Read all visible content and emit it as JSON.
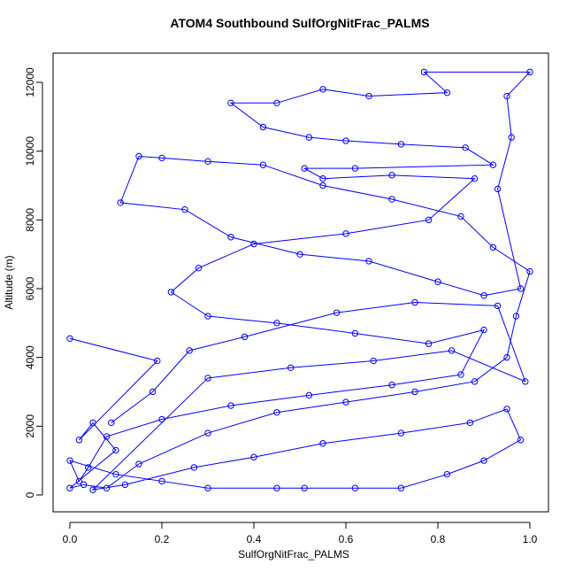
{
  "chart_data": {
    "type": "line",
    "marker": "circle",
    "title": "ATOM4 Southbound SulfOrgNitFrac_PALMS",
    "x_label": "SulfOrgNitFrac_PALMS",
    "y_label": "Altitude (m)",
    "xlim": [
      -0.0365,
      1.0404
    ],
    "ylim": [
      -490,
      12850
    ],
    "xticks": [
      {
        "value": 0,
        "label": "0.0"
      },
      {
        "value": 0.2,
        "label": "0.2"
      },
      {
        "value": 0.4,
        "label": "0.4"
      },
      {
        "value": 0.6,
        "label": "0.6"
      },
      {
        "value": 0.8,
        "label": "0.8"
      },
      {
        "value": 1,
        "label": "1.0"
      }
    ],
    "yticks": [
      0,
      2000,
      4000,
      6000,
      8000,
      10000,
      12000
    ],
    "grid": false,
    "series": [
      {
        "color": "#0000ff",
        "x": [
          0.0,
          0.19,
          0.02,
          0.05,
          0.1,
          0.0,
          0.03,
          0.08,
          0.15,
          0.3,
          0.45,
          0.6,
          0.75,
          0.88,
          0.95,
          0.97,
          1.0,
          0.92,
          0.85,
          0.7,
          0.55,
          0.42,
          0.3,
          0.2,
          0.15,
          0.11,
          0.25,
          0.35,
          0.5,
          0.65,
          0.8,
          0.9,
          0.98,
          0.93,
          0.96,
          0.95,
          1.0,
          0.77,
          0.82,
          0.65,
          0.55,
          0.45,
          0.35,
          0.42,
          0.52,
          0.6,
          0.72,
          0.86,
          0.92,
          0.62,
          0.51,
          0.55,
          0.7,
          0.88,
          0.78,
          0.6,
          0.4,
          0.28,
          0.22,
          0.3,
          0.45,
          0.62,
          0.78,
          0.9,
          0.85,
          0.7,
          0.52,
          0.35,
          0.2,
          0.08,
          0.04,
          0.02,
          0.0,
          0.1,
          0.2,
          0.3,
          0.45,
          0.51,
          0.62,
          0.72,
          0.82,
          0.9,
          0.98,
          0.95,
          0.87,
          0.72,
          0.55,
          0.4,
          0.27,
          0.12,
          0.05,
          0.3,
          0.48,
          0.66,
          0.83,
          0.99,
          0.93,
          0.75,
          0.58,
          0.38,
          0.26,
          0.18,
          0.09
        ],
        "values": [
          4550,
          3900,
          1600,
          2100,
          1300,
          200,
          300,
          200,
          900,
          1800,
          2400,
          2700,
          3000,
          3300,
          4000,
          5200,
          6500,
          7200,
          8100,
          8600,
          9000,
          9600,
          9700,
          9800,
          9850,
          8500,
          8300,
          7500,
          7000,
          6800,
          6200,
          5800,
          6000,
          8900,
          10400,
          11600,
          12300,
          12300,
          11700,
          11600,
          11800,
          11400,
          11400,
          10700,
          10400,
          10300,
          10200,
          10100,
          9600,
          9500,
          9500,
          9200,
          9300,
          9200,
          8000,
          7600,
          7300,
          6600,
          5900,
          5200,
          5000,
          4700,
          4400,
          4800,
          3500,
          3200,
          2900,
          2600,
          2200,
          1700,
          800,
          400,
          1000,
          600,
          400,
          200,
          200,
          200,
          200,
          200,
          600,
          1000,
          1600,
          2500,
          2100,
          1800,
          1500,
          1100,
          800,
          300,
          150,
          3400,
          3700,
          3900,
          4200,
          3300,
          5500,
          5600,
          5300,
          4600,
          4200,
          3000,
          2100
        ]
      }
    ]
  }
}
